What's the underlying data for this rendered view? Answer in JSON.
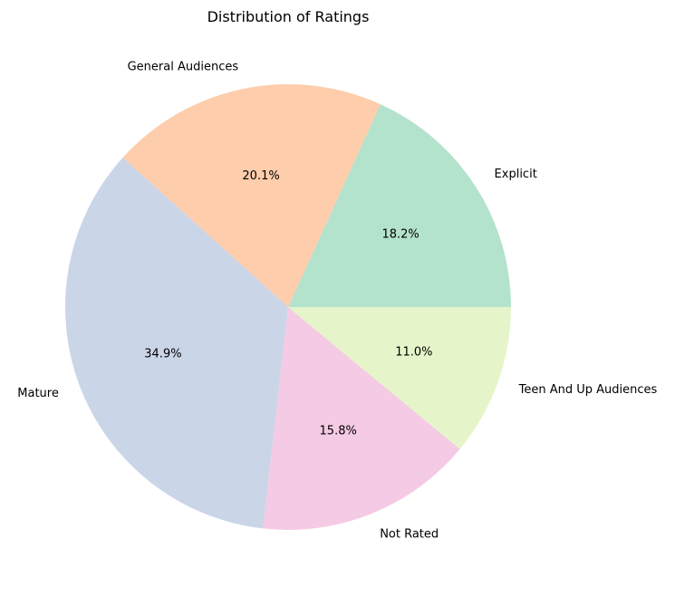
{
  "chart_data": {
    "type": "pie",
    "title": "Distribution of Ratings",
    "categories": [
      "Explicit",
      "General Audiences",
      "Mature",
      "Not Rated",
      "Teen And Up Audiences"
    ],
    "values": [
      18.2,
      20.1,
      34.9,
      15.8,
      11.0
    ],
    "value_labels": [
      "18.2%",
      "20.1%",
      "34.9%",
      "15.8%",
      "11.0%"
    ],
    "colors": [
      "#b3e2cd",
      "#fdcdac",
      "#cbd5e8",
      "#f4cae4",
      "#e6f5c9"
    ],
    "start_angle": 0,
    "direction": "counterclockwise",
    "legend": "none"
  }
}
